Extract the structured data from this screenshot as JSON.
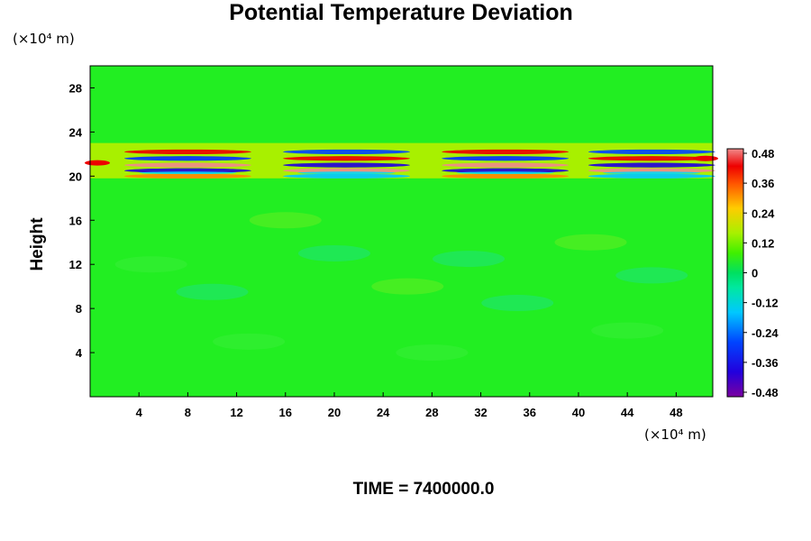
{
  "chart_data": {
    "type": "heatmap",
    "title": "Potential Temperature Deviation",
    "ylabel": "Height",
    "x_unit": "(×10⁴ m)",
    "y_unit": "(×10⁴ m)",
    "footer": "TIME = 7400000.0",
    "xlim": [
      0,
      51
    ],
    "ylim": [
      0,
      30
    ],
    "x_ticks": [
      "4",
      "8",
      "12",
      "16",
      "20",
      "24",
      "28",
      "32",
      "36",
      "40",
      "44",
      "48"
    ],
    "x_tick_values": [
      4,
      8,
      12,
      16,
      20,
      24,
      28,
      32,
      36,
      40,
      44,
      48
    ],
    "y_ticks": [
      "4",
      "8",
      "12",
      "16",
      "20",
      "24",
      "28"
    ],
    "y_tick_values": [
      4,
      8,
      12,
      16,
      20,
      24,
      28
    ],
    "colorbar": {
      "labels": [
        "0.48",
        "0.36",
        "0.24",
        "0.12",
        "0",
        "-0.12",
        "-0.24",
        "-0.36",
        "-0.48"
      ],
      "min": -0.48,
      "max": 0.48
    },
    "field_summary": {
      "background": 0,
      "wave_layer_y": [
        19.8,
        23.0
      ],
      "wave_centers_x": [
        8,
        21,
        34,
        46
      ],
      "amplitude_max": 0.48,
      "amplitude_min": -0.48
    }
  }
}
